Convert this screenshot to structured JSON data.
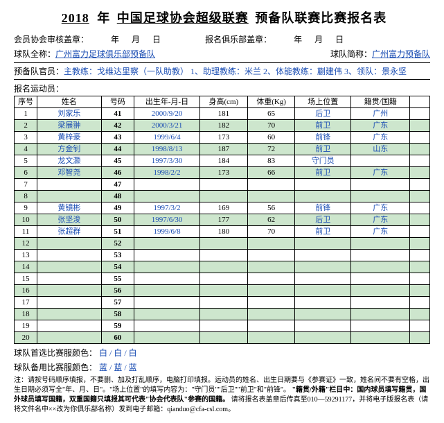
{
  "title": {
    "year": "2018",
    "year_suffix": "年",
    "league": "中国足球协会超级联赛",
    "suffix": "预备队联赛比赛报名表"
  },
  "seal_row": {
    "assoc_label": "会员协会审核盖章：",
    "y": "年",
    "m": "月",
    "d": "日",
    "club_label": "报名俱乐部盖章：",
    "y2": "年",
    "m2": "月",
    "d2": "日"
  },
  "team_row": {
    "full_label": "球队全称：",
    "full_value": "广州富力足球俱乐部预备队",
    "short_label": "球队简称：",
    "short_value": "广州富力预备队"
  },
  "staff_row": {
    "label": "预备队官员：",
    "value": "主教练：戈维达里察（一队助教） 1、助理教练：米兰 2、体能教练：蒯建伟 3、领队：景永坚"
  },
  "players_label": "报名运动员：",
  "columns": {
    "seq": "序号",
    "name": "姓名",
    "num": "号码",
    "dob": "出生年-月-日",
    "h": "身高(cm)",
    "w": "体重(Kg)",
    "pos": "场上位置",
    "nat": "籍贯/国籍",
    "ext": ""
  },
  "rows": [
    {
      "seq": "1",
      "name": "刘家乐",
      "num": "41",
      "dob": "2000/9/20",
      "h": "181",
      "w": "65",
      "pos": "后卫",
      "nat": "广州"
    },
    {
      "seq": "2",
      "name": "梁展翀",
      "num": "42",
      "dob": "2000/3/21",
      "h": "182",
      "w": "70",
      "pos": "前卫",
      "nat": "广东"
    },
    {
      "seq": "3",
      "name": "黄梓豪",
      "num": "43",
      "dob": "1999/6/4",
      "h": "173",
      "w": "60",
      "pos": "前锋",
      "nat": "广东"
    },
    {
      "seq": "4",
      "name": "方金钊",
      "num": "44",
      "dob": "1998/8/13",
      "h": "187",
      "w": "72",
      "pos": "前卫",
      "nat": "山东"
    },
    {
      "seq": "5",
      "name": "龙文灏",
      "num": "45",
      "dob": "1997/3/30",
      "h": "184",
      "w": "83",
      "pos": "守门员",
      "nat": ""
    },
    {
      "seq": "6",
      "name": "邓智尧",
      "num": "46",
      "dob": "1998/2/2",
      "h": "173",
      "w": "66",
      "pos": "前卫",
      "nat": "广东"
    },
    {
      "seq": "7",
      "name": "",
      "num": "47",
      "dob": "",
      "h": "",
      "w": "",
      "pos": "",
      "nat": ""
    },
    {
      "seq": "8",
      "name": "",
      "num": "48",
      "dob": "",
      "h": "",
      "w": "",
      "pos": "",
      "nat": ""
    },
    {
      "seq": "9",
      "name": "黄镜彬",
      "num": "49",
      "dob": "1997/3/2",
      "h": "169",
      "w": "56",
      "pos": "前锋",
      "nat": "广东"
    },
    {
      "seq": "10",
      "name": "张坚浚",
      "num": "50",
      "dob": "1997/6/30",
      "h": "177",
      "w": "62",
      "pos": "后卫",
      "nat": "广东"
    },
    {
      "seq": "11",
      "name": "张超群",
      "num": "51",
      "dob": "1999/6/8",
      "h": "180",
      "w": "70",
      "pos": "前卫",
      "nat": "广东"
    },
    {
      "seq": "12",
      "name": "",
      "num": "52",
      "dob": "",
      "h": "",
      "w": "",
      "pos": "",
      "nat": ""
    },
    {
      "seq": "13",
      "name": "",
      "num": "53",
      "dob": "",
      "h": "",
      "w": "",
      "pos": "",
      "nat": ""
    },
    {
      "seq": "14",
      "name": "",
      "num": "54",
      "dob": "",
      "h": "",
      "w": "",
      "pos": "",
      "nat": ""
    },
    {
      "seq": "15",
      "name": "",
      "num": "55",
      "dob": "",
      "h": "",
      "w": "",
      "pos": "",
      "nat": ""
    },
    {
      "seq": "16",
      "name": "",
      "num": "56",
      "dob": "",
      "h": "",
      "w": "",
      "pos": "",
      "nat": ""
    },
    {
      "seq": "17",
      "name": "",
      "num": "57",
      "dob": "",
      "h": "",
      "w": "",
      "pos": "",
      "nat": ""
    },
    {
      "seq": "18",
      "name": "",
      "num": "58",
      "dob": "",
      "h": "",
      "w": "",
      "pos": "",
      "nat": ""
    },
    {
      "seq": "19",
      "name": "",
      "num": "59",
      "dob": "",
      "h": "",
      "w": "",
      "pos": "",
      "nat": ""
    },
    {
      "seq": "20",
      "name": "",
      "num": "60",
      "dob": "",
      "h": "",
      "w": "",
      "pos": "",
      "nat": ""
    }
  ],
  "kit": {
    "first_label": "球队首选比赛服颜色：",
    "first_value": "白 / 白 / 白",
    "second_label": "球队备用比赛服颜色：",
    "second_value": "蓝 / 蓝 / 蓝"
  },
  "note": {
    "prefix": "注：请按号码顺序填报，不要删、加及打乱顺序，电脑打印填报。运动员的姓名、出生日期要与《参赛证》一致，姓名间不要有空格，出生日期必须写全\"年、月、日\"。\"场上位置\"的填写内容为：\"守门员\"\"后卫\"\"前卫\"和\"前锋\"。",
    "bold": "\"籍贯/外籍\"栏目中：国内球员填写籍贯，国外球员填写国籍，双重国籍只填报其可代表\"协会代表队\"参赛的国籍。",
    "suffix": "请将报名表盖章后传真至010—59291177，并将电子版报名表（请将文件名中××改为你俱乐部名称）发到电子邮箱：qianduo@cfa-csl.com。"
  },
  "colors": {
    "even_row": "#cde6cd",
    "blue_text": "#1a4db3"
  }
}
